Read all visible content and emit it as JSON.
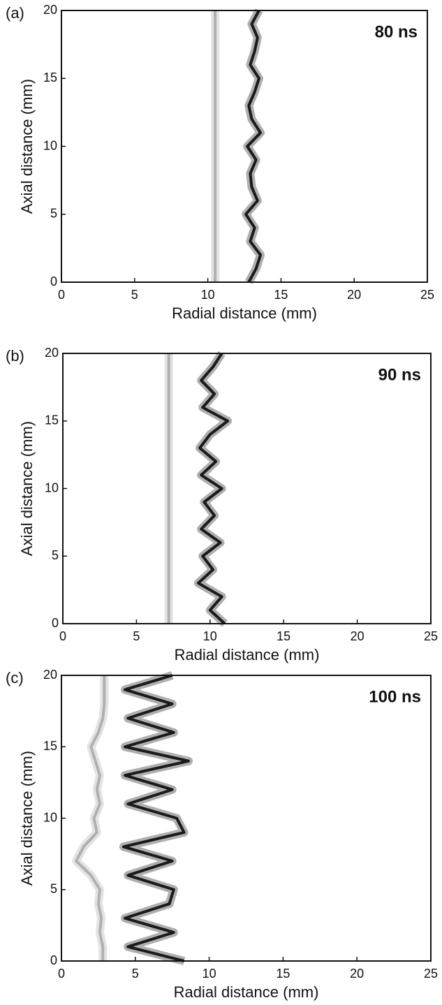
{
  "chart_data": [
    {
      "type": "contour",
      "panel_label": "(a)",
      "annotation": "80 ns",
      "xlabel": "Radial distance (mm)",
      "ylabel": "Axial distance (mm)",
      "xlim": [
        0,
        25
      ],
      "ylim": [
        0,
        20
      ],
      "xticks": [
        0,
        5,
        10,
        15,
        20,
        25
      ],
      "yticks": [
        0,
        5,
        10,
        15,
        20
      ],
      "contours": [
        {
          "color": "#b0b0b0",
          "x": [
            10.5,
            10.5
          ],
          "y": [
            0,
            20
          ]
        },
        {
          "color": "#1a1a1a",
          "x": [
            12.8,
            13.3,
            13.6,
            12.9,
            13.2,
            12.6,
            13.4,
            13.0,
            12.9,
            13.3,
            12.7,
            13.6,
            13.0,
            12.8,
            13.2,
            13.5,
            12.9,
            13.2,
            13.4,
            13.0,
            13.5
          ],
          "y": [
            0,
            1,
            2,
            3,
            4,
            5,
            6,
            7,
            8,
            9,
            10,
            11,
            12,
            13,
            14,
            15,
            16,
            17,
            18,
            19,
            20
          ]
        }
      ]
    },
    {
      "type": "contour",
      "panel_label": "(b)",
      "annotation": "90 ns",
      "xlabel": "Radial distance (mm)",
      "ylabel": "Axial distance (mm)",
      "xlim": [
        0,
        25
      ],
      "ylim": [
        0,
        20
      ],
      "xticks": [
        0,
        5,
        10,
        15,
        20,
        25
      ],
      "yticks": [
        0,
        5,
        10,
        15,
        20
      ],
      "contours": [
        {
          "color": "#b0b0b0",
          "x": [
            7.2,
            7.2
          ],
          "y": [
            0,
            20
          ]
        },
        {
          "color": "#1a1a1a",
          "x": [
            11.0,
            10.0,
            10.8,
            9.2,
            10.2,
            9.5,
            10.7,
            9.4,
            10.3,
            9.6,
            10.8,
            9.4,
            10.4,
            9.3,
            10.0,
            11.2,
            9.5,
            10.3,
            9.4,
            10.2,
            10.8
          ],
          "y": [
            0,
            1,
            2,
            3,
            4,
            5,
            6,
            7,
            8,
            9,
            10,
            11,
            12,
            13,
            14,
            15,
            16,
            17,
            18,
            19,
            20
          ]
        }
      ]
    },
    {
      "type": "contour",
      "panel_label": "(c)",
      "annotation": "100 ns",
      "xlabel": "Radial distance (mm)",
      "ylabel": "Axial distance (mm)",
      "xlim": [
        0,
        25
      ],
      "ylim": [
        0,
        20
      ],
      "xticks": [
        0,
        5,
        10,
        15,
        20,
        25
      ],
      "yticks": [
        0,
        5,
        10,
        15,
        20
      ],
      "contours": [
        {
          "color": "#b0b0b0",
          "x": [
            2.8,
            2.8,
            2.6,
            2.7,
            2.5,
            2.6,
            2.0,
            1.0,
            1.5,
            2.4,
            2.2,
            2.6,
            2.4,
            2.6,
            2.3,
            2.0,
            2.5,
            2.8,
            2.9,
            2.9,
            2.9
          ],
          "y": [
            0,
            1,
            2,
            3,
            4,
            5,
            6,
            7,
            8,
            9,
            10,
            11,
            12,
            13,
            14,
            15,
            16,
            17,
            18,
            19,
            20
          ]
        },
        {
          "color": "#1a1a1a",
          "x": [
            8.3,
            4.5,
            7.6,
            4.3,
            7.3,
            7.6,
            4.5,
            7.5,
            4.2,
            8.3,
            7.8,
            4.5,
            7.5,
            4.3,
            8.6,
            4.3,
            7.6,
            4.5,
            7.5,
            4.3,
            7.5
          ],
          "y": [
            0,
            1,
            2,
            3,
            4,
            5,
            6,
            7,
            8,
            9,
            10,
            11,
            12,
            13,
            14,
            15,
            16,
            17,
            18,
            19,
            20
          ]
        }
      ]
    }
  ]
}
